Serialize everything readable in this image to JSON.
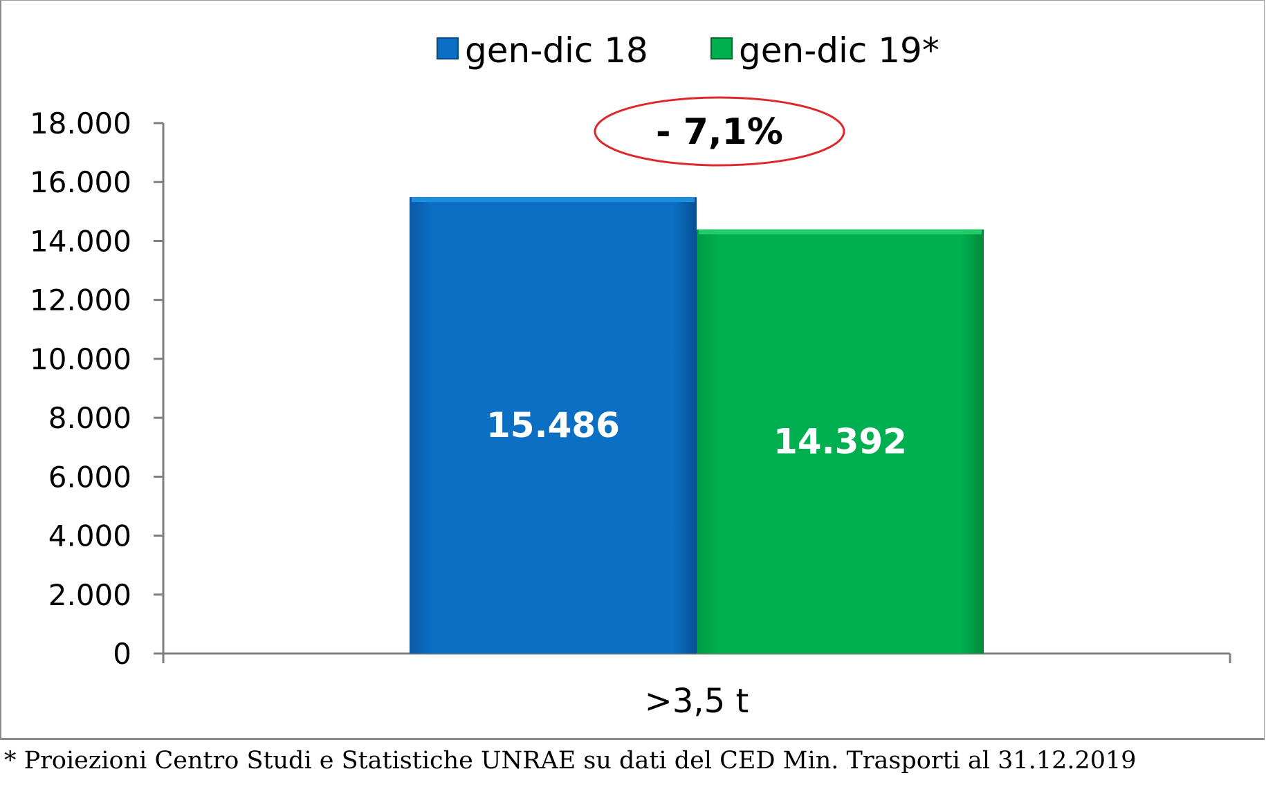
{
  "chart_data": {
    "type": "bar",
    "categories": [
      ">3,5 t"
    ],
    "series": [
      {
        "name": "gen-dic 18",
        "values": [
          15486
        ],
        "labels": [
          "15.486"
        ],
        "color": "#0b6fc4"
      },
      {
        "name": "gen-dic 19*",
        "values": [
          14392
        ],
        "labels": [
          "14.392"
        ],
        "color": "#00b050"
      }
    ],
    "ylim": [
      0,
      18000
    ],
    "yticks": [
      0,
      2000,
      4000,
      6000,
      8000,
      10000,
      12000,
      14000,
      16000,
      18000
    ],
    "ytick_labels": [
      "0",
      "2.000",
      "4.000",
      "6.000",
      "8.000",
      "10.000",
      "12.000",
      "14.000",
      "16.000",
      "18.000"
    ],
    "legend_position": "top-center",
    "grid": false,
    "annotation": {
      "text": "- 7,1%",
      "outline_color": "#e0262b"
    }
  },
  "footnote": "* Proiezioni Centro Studi e Statistiche UNRAE su dati del CED Min. Trasporti al 31.12.2019"
}
